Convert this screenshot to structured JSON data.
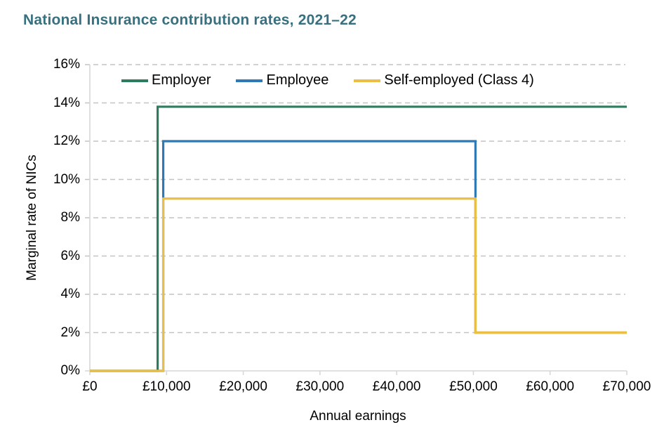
{
  "chart_data": {
    "type": "line",
    "subtype": "step",
    "title": "National Insurance contribution rates, 2021–22",
    "xlabel": "Annual earnings",
    "ylabel": "Marginal rate of NICs",
    "xlim": [
      0,
      70000
    ],
    "ylim": [
      0,
      16
    ],
    "grid": "horizontal-dashed",
    "legend_position": "top-inside",
    "x_ticks": [
      {
        "v": 0,
        "label": "£0"
      },
      {
        "v": 10000,
        "label": "£10,000"
      },
      {
        "v": 20000,
        "label": "£20,000"
      },
      {
        "v": 30000,
        "label": "£30,000"
      },
      {
        "v": 40000,
        "label": "£40,000"
      },
      {
        "v": 50000,
        "label": "£50,000"
      },
      {
        "v": 60000,
        "label": "£60,000"
      },
      {
        "v": 70000,
        "label": "£70,000"
      }
    ],
    "y_ticks": [
      {
        "v": 0,
        "label": "0%"
      },
      {
        "v": 2,
        "label": "2%"
      },
      {
        "v": 4,
        "label": "4%"
      },
      {
        "v": 6,
        "label": "6%"
      },
      {
        "v": 8,
        "label": "8%"
      },
      {
        "v": 10,
        "label": "10%"
      },
      {
        "v": 12,
        "label": "12%"
      },
      {
        "v": 14,
        "label": "14%"
      },
      {
        "v": 16,
        "label": "16%"
      }
    ],
    "series": [
      {
        "name": "Employer",
        "color": "#2e7b5e",
        "points": [
          [
            0,
            0
          ],
          [
            8840,
            0
          ],
          [
            8840,
            13.8
          ],
          [
            70000,
            13.8
          ]
        ]
      },
      {
        "name": "Employee",
        "color": "#2e79b7",
        "points": [
          [
            0,
            0
          ],
          [
            9568,
            0
          ],
          [
            9568,
            12
          ],
          [
            50270,
            12
          ],
          [
            50270,
            2
          ],
          [
            70000,
            2
          ]
        ]
      },
      {
        "name": "Self-employed (Class 4)",
        "color": "#ebbf45",
        "points": [
          [
            0,
            0
          ],
          [
            9568,
            0
          ],
          [
            9568,
            9
          ],
          [
            50270,
            9
          ],
          [
            50270,
            2
          ],
          [
            70000,
            2
          ]
        ]
      }
    ],
    "colors": {
      "title": "#38707f",
      "gridline": "#c4c4c4",
      "axis": "#d7d7d7",
      "text": "#000000",
      "background": "#ffffff"
    }
  }
}
